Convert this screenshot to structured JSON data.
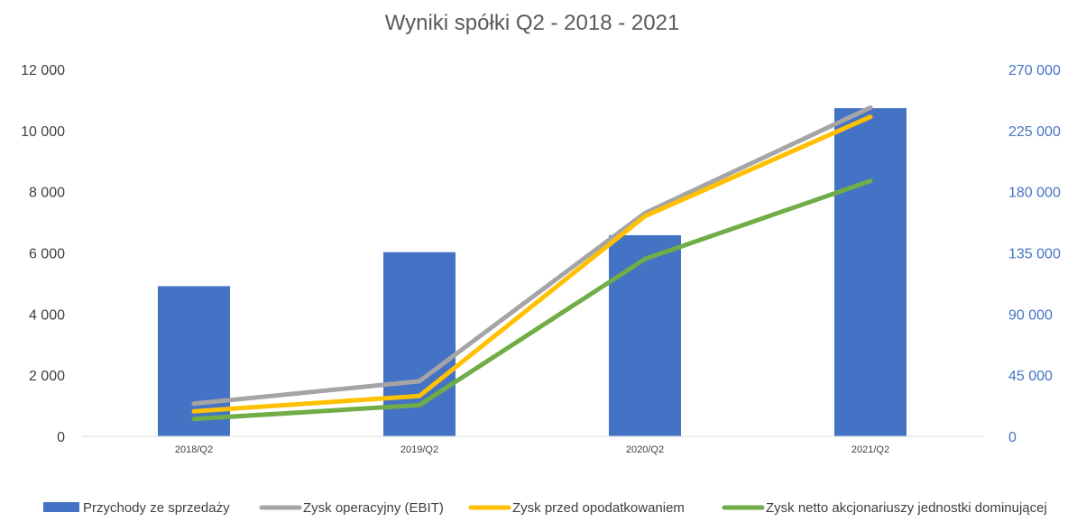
{
  "chart_data": {
    "type": "bar",
    "title": "Wyniki spółki Q2 - 2018 - 2021",
    "categories": [
      "2018/Q2",
      "2019/Q2",
      "2020/Q2",
      "2021/Q2"
    ],
    "y_left": {
      "ticks": [
        "0",
        "2 000",
        "4 000",
        "6 000",
        "8 000",
        "10 000",
        "12 000"
      ],
      "ylim": [
        0,
        12000
      ]
    },
    "y_right": {
      "ticks": [
        "0",
        "45 000",
        "90 000",
        "135 000",
        "180 000",
        "225 000",
        "270 000"
      ],
      "ylim": [
        0,
        270000
      ]
    },
    "grid": false,
    "legend_position": "bottom",
    "series": [
      {
        "name": "Przychody ze sprzedaży",
        "type": "bar",
        "axis": "right",
        "color": "#4472C4",
        "values": [
          110500,
          135500,
          148000,
          241500
        ]
      },
      {
        "name": "Zysk operacyjny (EBIT)",
        "type": "line",
        "axis": "left",
        "color": "#A5A5A5",
        "values": [
          1070,
          1800,
          7300,
          10750
        ]
      },
      {
        "name": "Zysk przed opodatkowaniem",
        "type": "line",
        "axis": "left",
        "color": "#FFC000",
        "values": [
          820,
          1320,
          7200,
          10450
        ]
      },
      {
        "name": "Zysk netto akcjonariuszy jednostki dominującej",
        "type": "line",
        "axis": "left",
        "color": "#70AD47",
        "values": [
          570,
          1020,
          5800,
          8350
        ]
      }
    ]
  }
}
